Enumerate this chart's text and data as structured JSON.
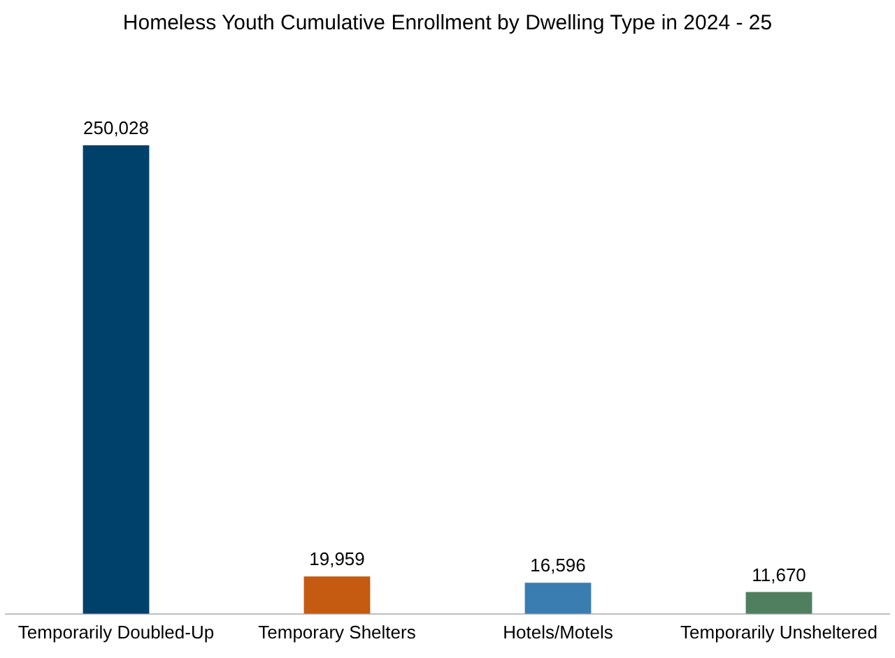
{
  "chart_data": {
    "type": "bar",
    "title": "Homeless Youth Cumulative Enrollment by Dwelling Type in 2024 - 25",
    "categories": [
      "Temporarily Doubled-Up",
      "Temporary Shelters",
      "Hotels/Motels",
      "Temporarily Unsheltered"
    ],
    "values": [
      250028,
      19959,
      16596,
      11670
    ],
    "colors": [
      "#00416b",
      "#c55a11",
      "#3a7db0",
      "#4f7f5f"
    ],
    "value_labels": [
      "250,028",
      "19,959",
      "16,596",
      "11,670"
    ],
    "grid": false,
    "legend": false
  }
}
